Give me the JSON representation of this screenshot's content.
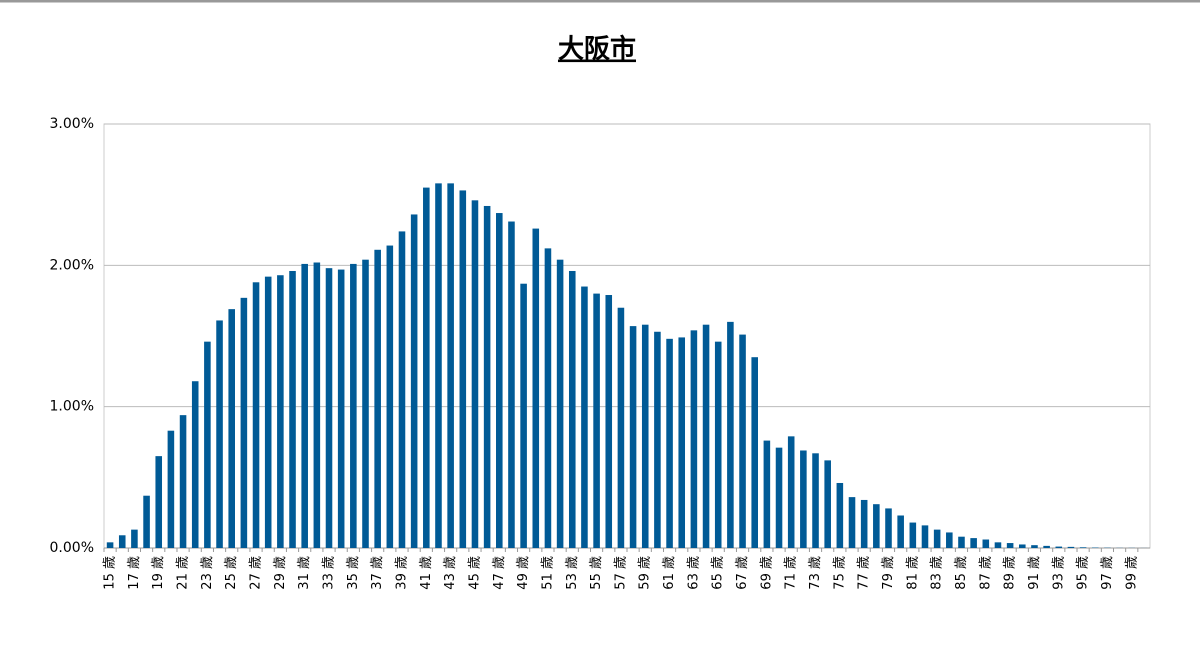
{
  "chart_data": {
    "type": "bar",
    "title": "大阪市",
    "categories": [
      "15 歳",
      null,
      "17 歳",
      null,
      "19 歳",
      null,
      "21 歳",
      null,
      "23 歳",
      null,
      "25 歳",
      null,
      "27 歳",
      null,
      "29 歳",
      null,
      "31 歳",
      null,
      "33 歳",
      null,
      "35 歳",
      null,
      "37 歳",
      null,
      "39 歳",
      null,
      "41 歳",
      null,
      "43 歳",
      null,
      "45 歳",
      null,
      "47 歳",
      null,
      "49 歳",
      null,
      "51 歳",
      null,
      "53 歳",
      null,
      "55 歳",
      null,
      "57 歳",
      null,
      "59 歳",
      null,
      "61 歳",
      null,
      "63 歳",
      null,
      "65 歳",
      null,
      "67 歳",
      null,
      "69 歳",
      null,
      "71 歳",
      null,
      "73 歳",
      null,
      "75 歳",
      null,
      "77 歳",
      null,
      "79 歳",
      null,
      "81 歳",
      null,
      "83 歳",
      null,
      "85 歳",
      null,
      "87 歳",
      null,
      "89 歳",
      null,
      "91 歳",
      null,
      "93 歳",
      null,
      "95 歳",
      null,
      "97 歳",
      null,
      "99 歳",
      null
    ],
    "values": [
      0.04,
      0.09,
      0.13,
      0.37,
      0.65,
      0.83,
      0.94,
      1.18,
      1.46,
      1.61,
      1.69,
      1.77,
      1.88,
      1.92,
      1.93,
      1.96,
      2.01,
      2.02,
      1.98,
      1.97,
      2.01,
      2.04,
      2.11,
      2.14,
      2.24,
      2.36,
      2.55,
      2.58,
      2.58,
      2.53,
      2.46,
      2.42,
      2.37,
      2.31,
      1.87,
      2.26,
      2.12,
      2.04,
      1.96,
      1.85,
      1.8,
      1.79,
      1.7,
      1.57,
      1.58,
      1.53,
      1.48,
      1.49,
      1.54,
      1.58,
      1.46,
      1.6,
      1.51,
      1.35,
      0.76,
      0.71,
      0.79,
      0.69,
      0.67,
      0.62,
      0.46,
      0.36,
      0.34,
      0.31,
      0.28,
      0.23,
      0.18,
      0.16,
      0.13,
      0.11,
      0.08,
      0.07,
      0.06,
      0.04,
      0.035,
      0.025,
      0.02,
      0.015,
      0.01,
      0.008,
      0.005,
      0.003,
      0.002,
      0.001,
      0.001,
      0.0005
    ],
    "color": "#005a96",
    "ylim": [
      0,
      3
    ],
    "yticks": [
      {
        "value": 0,
        "label": "0.00%"
      },
      {
        "value": 1,
        "label": "1.00%"
      },
      {
        "value": 2,
        "label": "2.00%"
      },
      {
        "value": 3,
        "label": "3.00%"
      }
    ],
    "grid": true
  }
}
